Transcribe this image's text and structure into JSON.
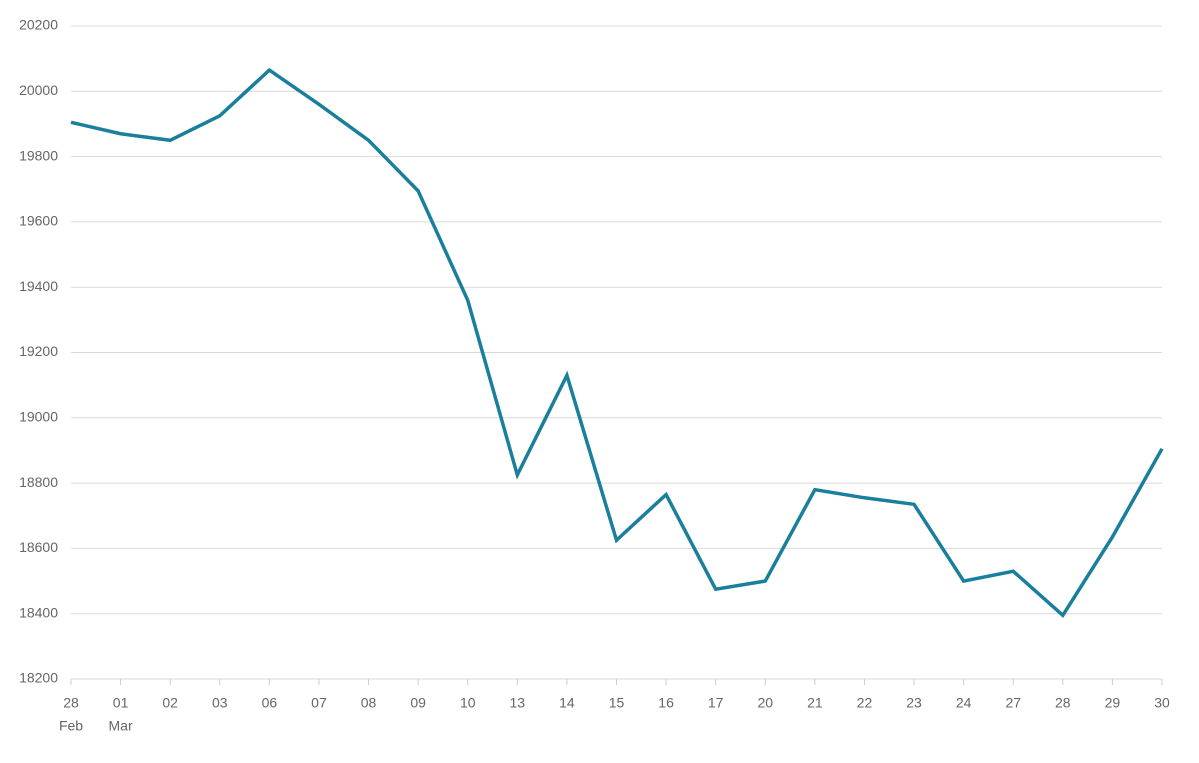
{
  "chart_data": {
    "type": "line",
    "categories": [
      "28",
      "01",
      "02",
      "03",
      "06",
      "07",
      "08",
      "09",
      "10",
      "13",
      "14",
      "15",
      "16",
      "17",
      "20",
      "21",
      "22",
      "23",
      "24",
      "27",
      "28",
      "29",
      "30"
    ],
    "category_months": [
      "Feb",
      "Mar",
      null,
      null,
      null,
      null,
      null,
      null,
      null,
      null,
      null,
      null,
      null,
      null,
      null,
      null,
      null,
      null,
      null,
      null,
      null,
      null,
      null
    ],
    "values": [
      19905,
      19870,
      19850,
      19925,
      20065,
      19960,
      19850,
      19695,
      19360,
      18825,
      19130,
      18625,
      18765,
      18475,
      18500,
      18780,
      18755,
      18735,
      18500,
      18530,
      18395,
      18635,
      18905
    ],
    "color": "#1a7f9c",
    "ylim": [
      18200,
      20200
    ],
    "yticks": [
      18200,
      18400,
      18600,
      18800,
      19000,
      19200,
      19400,
      19600,
      19800,
      20000,
      20200
    ],
    "grid": true
  }
}
